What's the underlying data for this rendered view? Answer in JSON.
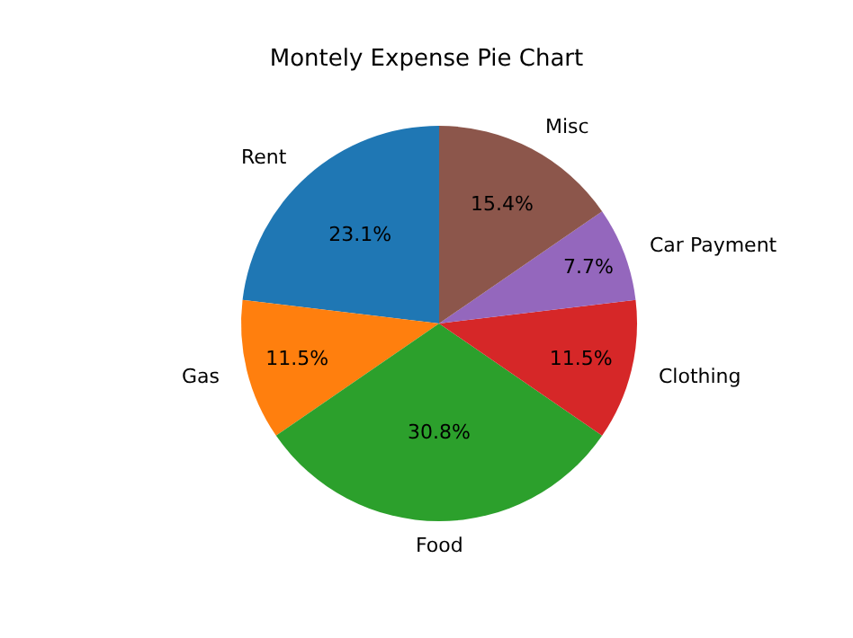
{
  "chart_data": {
    "type": "pie",
    "title": "Montely Expense Pie Chart",
    "categories": [
      "Rent",
      "Gas",
      "Food",
      "Clothing",
      "Car Payment",
      "Misc"
    ],
    "values": [
      23.1,
      11.5,
      30.8,
      11.5,
      7.7,
      15.4
    ],
    "colors": [
      "#1f77b4",
      "#ff7f0e",
      "#2ca02c",
      "#d62728",
      "#9467bd",
      "#8c564b"
    ],
    "value_labels": [
      "23.1%",
      "11.5%",
      "30.8%",
      "11.5%",
      "7.7%",
      "15.4%"
    ],
    "legend": false
  }
}
